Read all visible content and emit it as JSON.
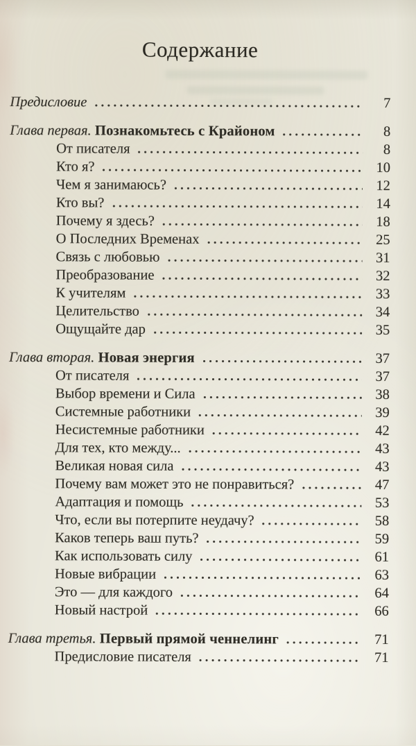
{
  "page": {
    "title": "Содержание"
  },
  "colors": {
    "paper": "#e9e7db",
    "ink": "#2f2d26",
    "leader_dots": "#393730"
  },
  "toc": {
    "entries": [
      {
        "italic": "Предисловие",
        "text": "",
        "page": "7",
        "level": "chapter"
      },
      {
        "italic": "Глава первая.",
        "text": "Познакомьтесь с Крайоном",
        "page": "8",
        "level": "chapter"
      },
      {
        "italic": "",
        "text": "От писателя",
        "page": "8",
        "level": "sub"
      },
      {
        "italic": "",
        "text": "Кто я?",
        "page": "10",
        "level": "sub"
      },
      {
        "italic": "",
        "text": "Чем я занимаюсь?",
        "page": "12",
        "level": "sub"
      },
      {
        "italic": "",
        "text": "Кто вы?",
        "page": "14",
        "level": "sub"
      },
      {
        "italic": "",
        "text": "Почему я здесь?",
        "page": "18",
        "level": "sub"
      },
      {
        "italic": "",
        "text": "О Последних Временах",
        "page": "25",
        "level": "sub"
      },
      {
        "italic": "",
        "text": "Связь с любовью",
        "page": "31",
        "level": "sub"
      },
      {
        "italic": "",
        "text": "Преобразование",
        "page": "32",
        "level": "sub"
      },
      {
        "italic": "",
        "text": "К учителям",
        "page": "33",
        "level": "sub"
      },
      {
        "italic": "",
        "text": "Целительство",
        "page": "34",
        "level": "sub"
      },
      {
        "italic": "",
        "text": "Ощущайте дар",
        "page": "35",
        "level": "sub"
      },
      {
        "italic": "Глава вторая.",
        "text": "Новая энергия",
        "page": "37",
        "level": "chapter"
      },
      {
        "italic": "",
        "text": "От писателя",
        "page": "37",
        "level": "sub"
      },
      {
        "italic": "",
        "text": "Выбор времени и Сила",
        "page": "38",
        "level": "sub"
      },
      {
        "italic": "",
        "text": "Системные работники",
        "page": "39",
        "level": "sub"
      },
      {
        "italic": "",
        "text": "Несистемные работники",
        "page": "42",
        "level": "sub"
      },
      {
        "italic": "",
        "text": "Для тех, кто между...",
        "page": "43",
        "level": "sub"
      },
      {
        "italic": "",
        "text": "Великая новая сила",
        "page": "43",
        "level": "sub"
      },
      {
        "italic": "",
        "text": "Почему вам может это не понравиться?",
        "page": "47",
        "level": "sub"
      },
      {
        "italic": "",
        "text": "Адаптация и помощь",
        "page": "53",
        "level": "sub"
      },
      {
        "italic": "",
        "text": "Что, если вы потерпите неудачу?",
        "page": "58",
        "level": "sub"
      },
      {
        "italic": "",
        "text": "Каков теперь ваш путь?",
        "page": "59",
        "level": "sub"
      },
      {
        "italic": "",
        "text": "Как использовать силу",
        "page": "61",
        "level": "sub"
      },
      {
        "italic": "",
        "text": "Новые вибрации",
        "page": "63",
        "level": "sub"
      },
      {
        "italic": "",
        "text": "Это — для каждого",
        "page": "64",
        "level": "sub"
      },
      {
        "italic": "",
        "text": "Новый настрой",
        "page": "66",
        "level": "sub"
      },
      {
        "italic": "Глава третья.",
        "text": "Первый прямой ченнелинг",
        "page": "71",
        "level": "chapter"
      },
      {
        "italic": "",
        "text": "Предисловие писателя",
        "page": "71",
        "level": "sub"
      }
    ]
  }
}
